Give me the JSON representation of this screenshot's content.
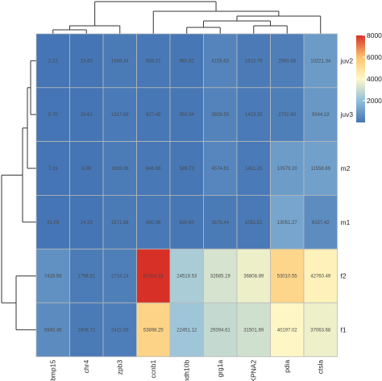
{
  "chart_data": {
    "type": "heatmap",
    "title": "",
    "columns": [
      "bmp15",
      "chr4",
      "zpb3",
      "ccnb1",
      "ndh10b",
      "grg1a",
      "KPNA2",
      "pdia",
      "ctsla"
    ],
    "rows": [
      "juv2",
      "juv3",
      "m2",
      "m1",
      "f2",
      "f1"
    ],
    "values": [
      [
        2.12,
        23.63,
        1569.34,
        808.21,
        665.82,
        4155.63,
        1613.79,
        2560.88,
        10221.34
      ],
      [
        5.7,
        29.61,
        1317.83,
        627.45,
        550.34,
        3828.55,
        1423.32,
        2702.6,
        9344.19
      ],
      [
        7.19,
        6.98,
        1893.06,
        846.88,
        589.73,
        4574.81,
        1411.2,
        10579.2,
        11558.89
      ],
      [
        31.03,
        14.23,
        1571.68,
        890.06,
        630.6,
        1678.44,
        1051.51,
        13051.27,
        6157.42
      ],
      [
        7428.58,
        1798.51,
        2724.24,
        81904.28,
        24519.53,
        32685.19,
        36808.89,
        53010.55,
        42760.49
      ],
      [
        5940.45,
        1608.72,
        2422.85,
        53898.25,
        22451.12,
        29394.61,
        31501.69,
        40197.02,
        37063.68
      ]
    ],
    "value_labels": [
      [
        "2.12",
        "23.63",
        "1569.34",
        "808.21",
        "665.82",
        "4155.63",
        "1613.79",
        "2560.88",
        "10221.34"
      ],
      [
        "5.70",
        "29.61",
        "1317.83",
        "627.45",
        "550.34",
        "3828.55",
        "1423.32",
        "2702.60",
        "9344.19"
      ],
      [
        "7.19",
        "6.98",
        "1893.06",
        "846.88",
        "589.73",
        "4574.81",
        "1411.20",
        "10579.20",
        "11558.89"
      ],
      [
        "31.03",
        "14.23",
        "1571.68",
        "890.06",
        "630.60",
        "1678.44",
        "1051.51",
        "13051.27",
        "6157.42"
      ],
      [
        "7428.58",
        "1798.51",
        "2724.24",
        "81904.28",
        "24519.53",
        "32685.19",
        "36808.89",
        "53010.55",
        "42760.49"
      ],
      [
        "5940.45",
        "1608.72",
        "2422.85",
        "53898.25",
        "22451.12",
        "29394.61",
        "31501.69",
        "40197.02",
        "37063.68"
      ]
    ],
    "color_scale": {
      "min": 0,
      "max": 80000,
      "stops": [
        "#4575b4",
        "#91bfdb",
        "#fef8c6",
        "#fdc46c",
        "#d73027"
      ]
    },
    "legend": {
      "position": "top-right",
      "ticks": [
        {
          "value": 20000,
          "label": "20000"
        },
        {
          "value": 40000,
          "label": "40000"
        },
        {
          "value": 60000,
          "label": "60000"
        },
        {
          "value": 80000,
          "label": "80000"
        }
      ]
    },
    "dendrogram_columns": true,
    "dendrogram_rows": true
  }
}
